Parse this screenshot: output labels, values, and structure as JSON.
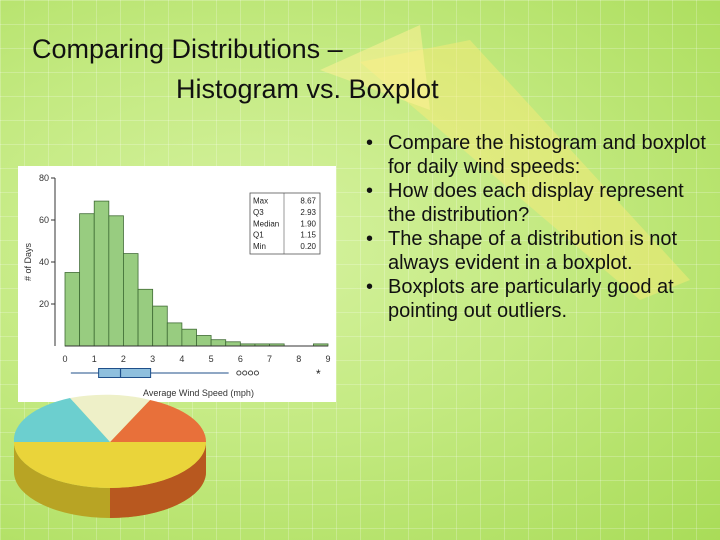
{
  "slide": {
    "title_line1": "Comparing Distributions –",
    "title_line2": "Histogram vs. Boxplot",
    "bullets": [
      "Compare the histogram and boxplot for daily wind speeds:",
      "How does each display represent the distribution?",
      "The shape of a distribution is not always evident in a boxplot.",
      "Boxplots are particularly good at pointing out outliers."
    ],
    "bullet_char": "•"
  },
  "colors": {
    "background": "#c4ea82",
    "bar_fill": "#98cc80",
    "bar_stroke": "#3f6b34",
    "box_fill": "#8fc0de",
    "box_stroke": "#1f4f8a",
    "pie_teal": "#6ccfcf",
    "pie_orange": "#e8703a",
    "pie_yellow": "#ead43a",
    "pie_cream": "#eef0c8"
  },
  "chart_data": {
    "type": "bar",
    "xlabel": "Average Wind Speed (mph)",
    "ylabel": "# of Days",
    "xlim": [
      0,
      9
    ],
    "ylim": [
      0,
      80
    ],
    "x_ticks": [
      "0",
      "1",
      "2",
      "3",
      "4",
      "5",
      "6",
      "7",
      "8",
      "9"
    ],
    "y_ticks": [
      "20",
      "40",
      "60",
      "80"
    ],
    "bin_width": 0.5,
    "bin_starts": [
      0,
      0.5,
      1,
      1.5,
      2,
      2.5,
      3,
      3.5,
      4,
      4.5,
      5,
      5.5,
      6,
      6.5,
      7,
      7.5,
      8,
      8.5
    ],
    "values": [
      35,
      63,
      69,
      62,
      44,
      27,
      19,
      11,
      8,
      5,
      3,
      2,
      1,
      1,
      1,
      0,
      0,
      1
    ],
    "summary_stats": [
      {
        "label": "Max",
        "value": "8.67"
      },
      {
        "label": "Q3",
        "value": "2.93"
      },
      {
        "label": "Median",
        "value": "1.90"
      },
      {
        "label": "Q1",
        "value": "1.15"
      },
      {
        "label": "Min",
        "value": "0.20"
      }
    ],
    "boxplot": {
      "min": 0.2,
      "q1": 1.15,
      "median": 1.9,
      "q3": 2.93,
      "whisker_high": 5.6,
      "outliers": [
        5.95,
        6.15,
        6.35,
        6.55,
        8.67
      ]
    }
  }
}
